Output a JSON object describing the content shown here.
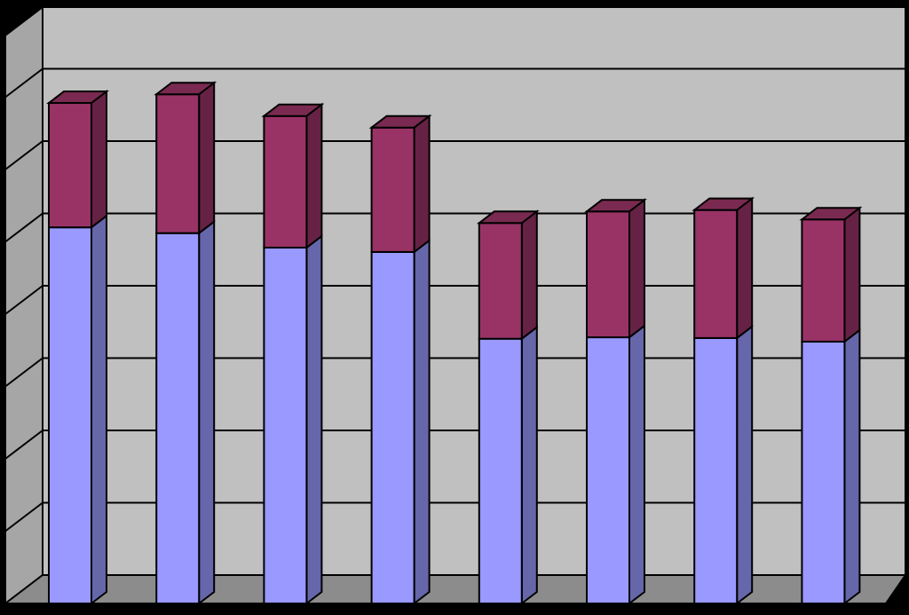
{
  "colors": {
    "background": "#000000",
    "wall": "#c0c0c0",
    "wall_side": "#a6a6a6",
    "floor": "#8c8c8c",
    "gridline": "#000000",
    "series_bottom_front": "#9999ff",
    "series_bottom_side": "#6666aa",
    "series_top_front": "#993366",
    "series_top_side": "#662244",
    "series_top_cap": "#7a2a50"
  },
  "chart_data": {
    "type": "bar",
    "stacked": true,
    "three_d": true,
    "title": "",
    "xlabel": "",
    "ylabel": "",
    "categories": [
      "",
      "",
      "",
      "",
      "",
      "",
      "",
      ""
    ],
    "ylim": [
      0,
      7
    ],
    "grid": true,
    "legend": "none",
    "series": [
      {
        "values": [
          5.2,
          5.12,
          4.92,
          4.86,
          3.66,
          3.68,
          3.67,
          3.62
        ]
      },
      {
        "values": [
          1.72,
          1.92,
          1.82,
          1.72,
          1.6,
          1.74,
          1.77,
          1.69
        ]
      }
    ]
  }
}
